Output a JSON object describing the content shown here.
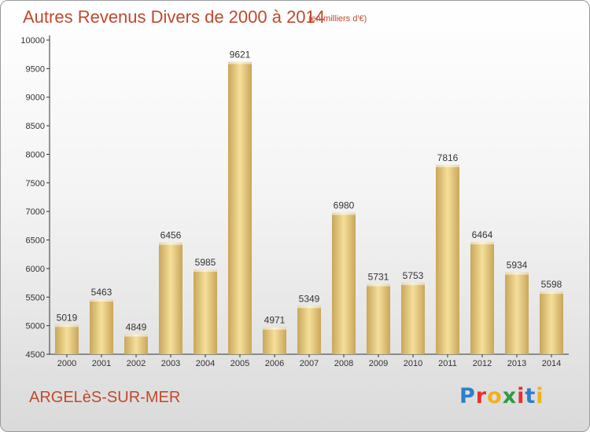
{
  "header": {
    "title": "Autres Revenus Divers de 2000 à 2014",
    "subtitle": "(en milliers d'€)"
  },
  "footer": {
    "city": "ARGELèS-SUR-MER",
    "logo_text": "Proxiti"
  },
  "colors": {
    "title": "#c0492d",
    "bar_light": "#f6df9a",
    "bar_dark": "#c8a65a",
    "logo_letters": [
      "#2e7fc8",
      "#e5322d",
      "#f0b21c",
      "#2e9b3f",
      "#e5322d",
      "#2e7fc8",
      "#f0b21c"
    ]
  },
  "chart_data": {
    "type": "bar",
    "categories": [
      "2000",
      "2001",
      "2002",
      "2003",
      "2004",
      "2005",
      "2006",
      "2007",
      "2008",
      "2009",
      "2010",
      "2011",
      "2012",
      "2013",
      "2014"
    ],
    "values": [
      5019,
      5463,
      4849,
      6456,
      5985,
      9621,
      4971,
      5349,
      6980,
      5731,
      5753,
      7816,
      6464,
      5934,
      5598
    ],
    "title": "Autres Revenus Divers de 2000 à 2014",
    "subtitle": "(en milliers d'€)",
    "xlabel": "",
    "ylabel": "",
    "ylim": [
      4500,
      10000
    ],
    "yticks": [
      4500,
      5000,
      5500,
      6000,
      6500,
      7000,
      7500,
      8000,
      8500,
      9000,
      9500,
      10000
    ],
    "grid": false,
    "data_labels": true
  }
}
